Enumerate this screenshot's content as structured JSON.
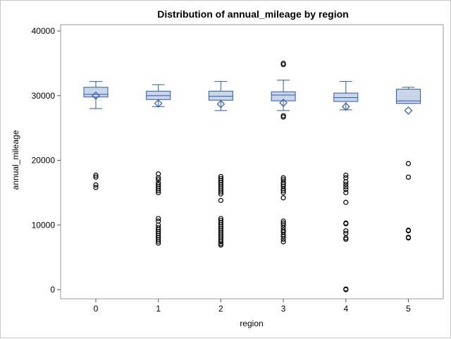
{
  "chart_data": {
    "type": "box",
    "title": "Distribution of annual_mileage by region",
    "xlabel": "region",
    "ylabel": "annual_mileage",
    "categories": [
      "0",
      "1",
      "2",
      "3",
      "4",
      "5"
    ],
    "ylim": [
      0,
      40000
    ],
    "yticks": [
      0,
      10000,
      20000,
      30000,
      40000
    ],
    "grid": false,
    "colors": {
      "box_fill": "#c9d5e8",
      "box_stroke": "#2f5ba5",
      "median": "#2f5ba5",
      "whisker": "#2f5ba5",
      "mean_marker": "#2f5ba5",
      "outlier": "#000000"
    },
    "boxes": [
      {
        "category": "0",
        "whisker_low": 28000,
        "q1": 29800,
        "median": 30200,
        "q3": 31300,
        "whisker_high": 32200,
        "mean": 30000,
        "outliers": [
          17700,
          17400,
          16200,
          15800
        ]
      },
      {
        "category": "1",
        "whisker_low": 28300,
        "q1": 29400,
        "median": 30000,
        "q3": 30700,
        "whisker_high": 31700,
        "mean": 28800,
        "outliers": [
          17900,
          17300,
          17000,
          16500,
          16200,
          15900,
          15600,
          15300,
          15000,
          11000,
          10600,
          10000,
          9600,
          9300,
          9000,
          8700,
          8400,
          8100,
          7800,
          7500,
          7200
        ]
      },
      {
        "category": "2",
        "whisker_low": 27700,
        "q1": 29300,
        "median": 29900,
        "q3": 30700,
        "whisker_high": 32200,
        "mean": 28700,
        "outliers": [
          17500,
          17200,
          16900,
          16600,
          16300,
          16000,
          15700,
          15400,
          15100,
          14800,
          13800,
          11000,
          10700,
          10400,
          10100,
          9800,
          9500,
          9200,
          8900,
          8600,
          8300,
          8000,
          7700,
          7400,
          7100,
          6900
        ]
      },
      {
        "category": "3",
        "whisker_low": 27700,
        "q1": 29200,
        "median": 30100,
        "q3": 30600,
        "whisker_high": 32400,
        "mean": 28900,
        "outliers": [
          35000,
          34800,
          26900,
          26700,
          17300,
          17000,
          16600,
          16300,
          16000,
          15600,
          15300,
          15000,
          14200,
          10600,
          10300,
          10000,
          9600,
          9200,
          8900,
          8500,
          8200,
          7800,
          7400
        ]
      },
      {
        "category": "4",
        "whisker_low": 27800,
        "q1": 29100,
        "median": 29700,
        "q3": 30400,
        "whisker_high": 32200,
        "mean": 28300,
        "outliers": [
          17700,
          17300,
          16700,
          16300,
          15900,
          15500,
          15000,
          13500,
          10300,
          10200,
          9100,
          8700,
          8000,
          7800,
          100,
          0
        ]
      },
      {
        "category": "5",
        "whisker_low": 28800,
        "q1": 28800,
        "median": 29200,
        "q3": 31000,
        "whisker_high": 31300,
        "mean": 27700,
        "outliers": [
          19500,
          17400,
          9200,
          9100,
          8100,
          8000
        ]
      }
    ]
  }
}
